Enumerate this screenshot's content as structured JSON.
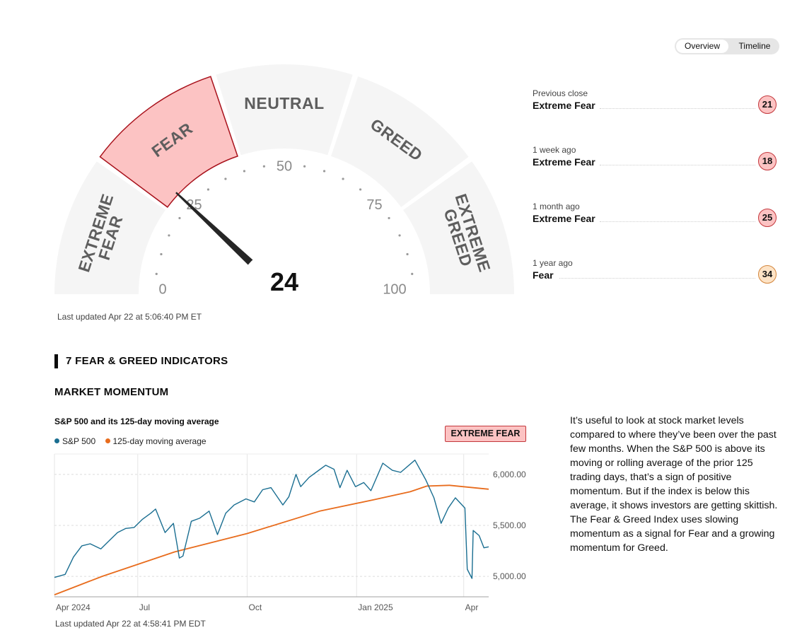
{
  "view_toggle": {
    "options": [
      "Overview",
      "Timeline"
    ],
    "selected": "Overview"
  },
  "gauge": {
    "score": 24,
    "rating": "Extreme Fear",
    "segments": [
      "EXTREME FEAR",
      "FEAR",
      "NEUTRAL",
      "GREED",
      "EXTREME GREED"
    ],
    "tick_labels": [
      "0",
      "25",
      "50",
      "75",
      "100"
    ],
    "active_color": "#fcc3c3",
    "active_border": "#a8111b",
    "inactive_color": "#f5f5f5",
    "needle_color": "#262626",
    "last_updated": "Last updated Apr 22 at 5:06:40 PM ET"
  },
  "history": [
    {
      "label": "Previous close",
      "rating": "Extreme Fear",
      "value": "21"
    },
    {
      "label": "1 week ago",
      "rating": "Extreme Fear",
      "value": "18"
    },
    {
      "label": "1 month ago",
      "rating": "Extreme Fear",
      "value": "25"
    },
    {
      "label": "1 year ago",
      "rating": "Fear",
      "value": "34"
    }
  ],
  "indicators": {
    "section_title": "7 FEAR & GREED INDICATORS",
    "current": {
      "name": "MARKET MOMENTUM",
      "chart_title": "S&P 500 and its 125-day moving average",
      "rating": "EXTREME FEAR",
      "legend": [
        {
          "label": "S&P 500",
          "color": "#1a6e91"
        },
        {
          "label": "125-day moving average",
          "color": "#e86c1d"
        }
      ],
      "last_updated": "Last updated Apr 22 at 4:58:41 PM EDT",
      "description": "It’s useful to look at stock market levels compared to where they’ve been over the past few months. When the S&P 500 is above its moving or rolling average of the prior 125 trading days, that’s a sign of positive momentum. But if the index is below this average, it shows investors are getting skittish. The Fear & Greed Index uses slowing momentum as a signal for Fear and a growing momentum for Greed."
    }
  },
  "chart_data": {
    "type": "line",
    "x_tick_labels": [
      "Apr 2024",
      "Jul",
      "Oct",
      "Jan 2025",
      "Apr"
    ],
    "y_tick_labels": [
      "6,000.00",
      "5,500.00",
      "5,000.00"
    ],
    "ylim": [
      4800,
      6200
    ],
    "xlim": [
      "2024-04-22",
      "2025-04-22"
    ],
    "series": [
      {
        "name": "S&P 500",
        "color": "#1a6e91",
        "x": [
          "2024-04-22",
          "2024-05-01",
          "2024-05-08",
          "2024-05-15",
          "2024-05-22",
          "2024-05-31",
          "2024-06-07",
          "2024-06-14",
          "2024-06-21",
          "2024-06-28",
          "2024-07-05",
          "2024-07-12",
          "2024-07-16",
          "2024-07-24",
          "2024-07-31",
          "2024-08-05",
          "2024-08-08",
          "2024-08-15",
          "2024-08-22",
          "2024-08-30",
          "2024-09-06",
          "2024-09-13",
          "2024-09-20",
          "2024-09-30",
          "2024-10-07",
          "2024-10-14",
          "2024-10-21",
          "2024-10-31",
          "2024-11-05",
          "2024-11-11",
          "2024-11-15",
          "2024-11-22",
          "2024-11-29",
          "2024-12-06",
          "2024-12-13",
          "2024-12-18",
          "2024-12-24",
          "2024-12-31",
          "2025-01-07",
          "2025-01-13",
          "2025-01-23",
          "2025-01-31",
          "2025-02-07",
          "2025-02-19",
          "2025-02-28",
          "2025-03-07",
          "2025-03-13",
          "2025-03-19",
          "2025-03-25",
          "2025-04-02",
          "2025-04-04",
          "2025-04-08",
          "2025-04-09",
          "2025-04-14",
          "2025-04-18",
          "2025-04-22"
        ],
        "values": [
          4990,
          5020,
          5190,
          5300,
          5320,
          5270,
          5350,
          5430,
          5470,
          5480,
          5560,
          5620,
          5660,
          5430,
          5520,
          5180,
          5200,
          5540,
          5570,
          5640,
          5410,
          5620,
          5700,
          5760,
          5730,
          5850,
          5870,
          5700,
          5780,
          6000,
          5880,
          5970,
          6030,
          6090,
          6050,
          5870,
          6040,
          5880,
          5920,
          5840,
          6110,
          6040,
          6020,
          6140,
          5950,
          5770,
          5520,
          5670,
          5770,
          5670,
          5070,
          4980,
          5450,
          5400,
          5280,
          5290
        ]
      },
      {
        "name": "125-day moving average",
        "color": "#e86c1d",
        "x": [
          "2024-04-22",
          "2024-06-01",
          "2024-08-01",
          "2024-10-01",
          "2024-12-01",
          "2025-01-15",
          "2025-02-15",
          "2025-03-01",
          "2025-03-20",
          "2025-04-22"
        ],
        "values": [
          4820,
          5000,
          5240,
          5420,
          5640,
          5750,
          5830,
          5885,
          5893,
          5855
        ]
      }
    ]
  }
}
